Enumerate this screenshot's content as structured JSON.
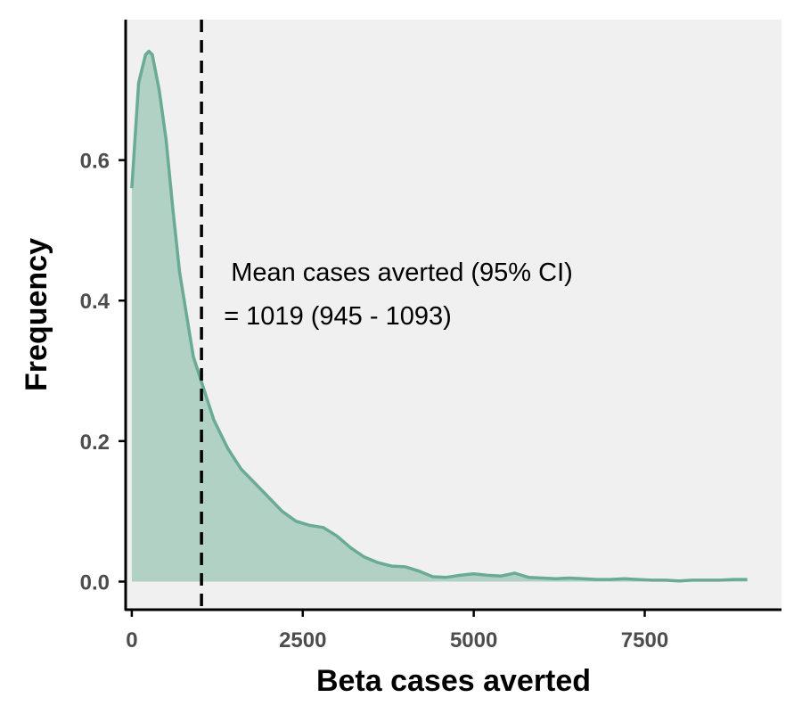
{
  "chart_data": {
    "type": "area",
    "xlabel": "Beta cases averted",
    "ylabel": "Frequency",
    "xlim": [
      -90,
      9500
    ],
    "ylim": [
      -0.04,
      0.8
    ],
    "x_ticks": [
      0,
      2500,
      5000,
      7500
    ],
    "x_tick_labels": [
      "0",
      "2500",
      "5000",
      "7500"
    ],
    "y_ticks": [
      0.0,
      0.2,
      0.4,
      0.6
    ],
    "y_tick_labels": [
      "0.0",
      "0.2",
      "0.4",
      "0.6"
    ],
    "grid": false,
    "legend": "none",
    "background_color": "#f0f0f0",
    "fill_color": "#b2d1c5",
    "line_color": "#6aab95",
    "series": [
      {
        "x": [
          0,
          100,
          200,
          250,
          300,
          400,
          500,
          600,
          700,
          800,
          900,
          1000,
          1100,
          1200,
          1300,
          1400,
          1500,
          1600,
          1800,
          2000,
          2200,
          2400,
          2600,
          2800,
          3000,
          3200,
          3400,
          3600,
          3800,
          4000,
          4200,
          4400,
          4600,
          4800,
          5000,
          5200,
          5400,
          5600,
          5800,
          6000,
          6200,
          6400,
          6600,
          6800,
          7000,
          7200,
          7400,
          7600,
          7800,
          8000,
          8200,
          8400,
          8600,
          8800,
          9000
        ],
        "y": [
          0.56,
          0.71,
          0.75,
          0.755,
          0.75,
          0.7,
          0.63,
          0.53,
          0.44,
          0.38,
          0.32,
          0.29,
          0.26,
          0.23,
          0.21,
          0.19,
          0.175,
          0.16,
          0.14,
          0.12,
          0.1,
          0.086,
          0.08,
          0.077,
          0.065,
          0.048,
          0.035,
          0.027,
          0.022,
          0.021,
          0.015,
          0.007,
          0.006,
          0.009,
          0.011,
          0.009,
          0.008,
          0.012,
          0.006,
          0.005,
          0.004,
          0.005,
          0.004,
          0.003,
          0.003,
          0.004,
          0.003,
          0.002,
          0.002,
          0.001,
          0.002,
          0.002,
          0.002,
          0.003,
          0.003
        ]
      }
    ],
    "reference_line": {
      "x": 1019,
      "style": "dashed",
      "color": "#000000"
    },
    "annotation": {
      "line1": "Mean cases averted (95% CI)",
      "line2": "= 1019 (945 - 1093)",
      "x": 1450,
      "line1_y": 0.428,
      "line2_y": 0.366
    }
  }
}
